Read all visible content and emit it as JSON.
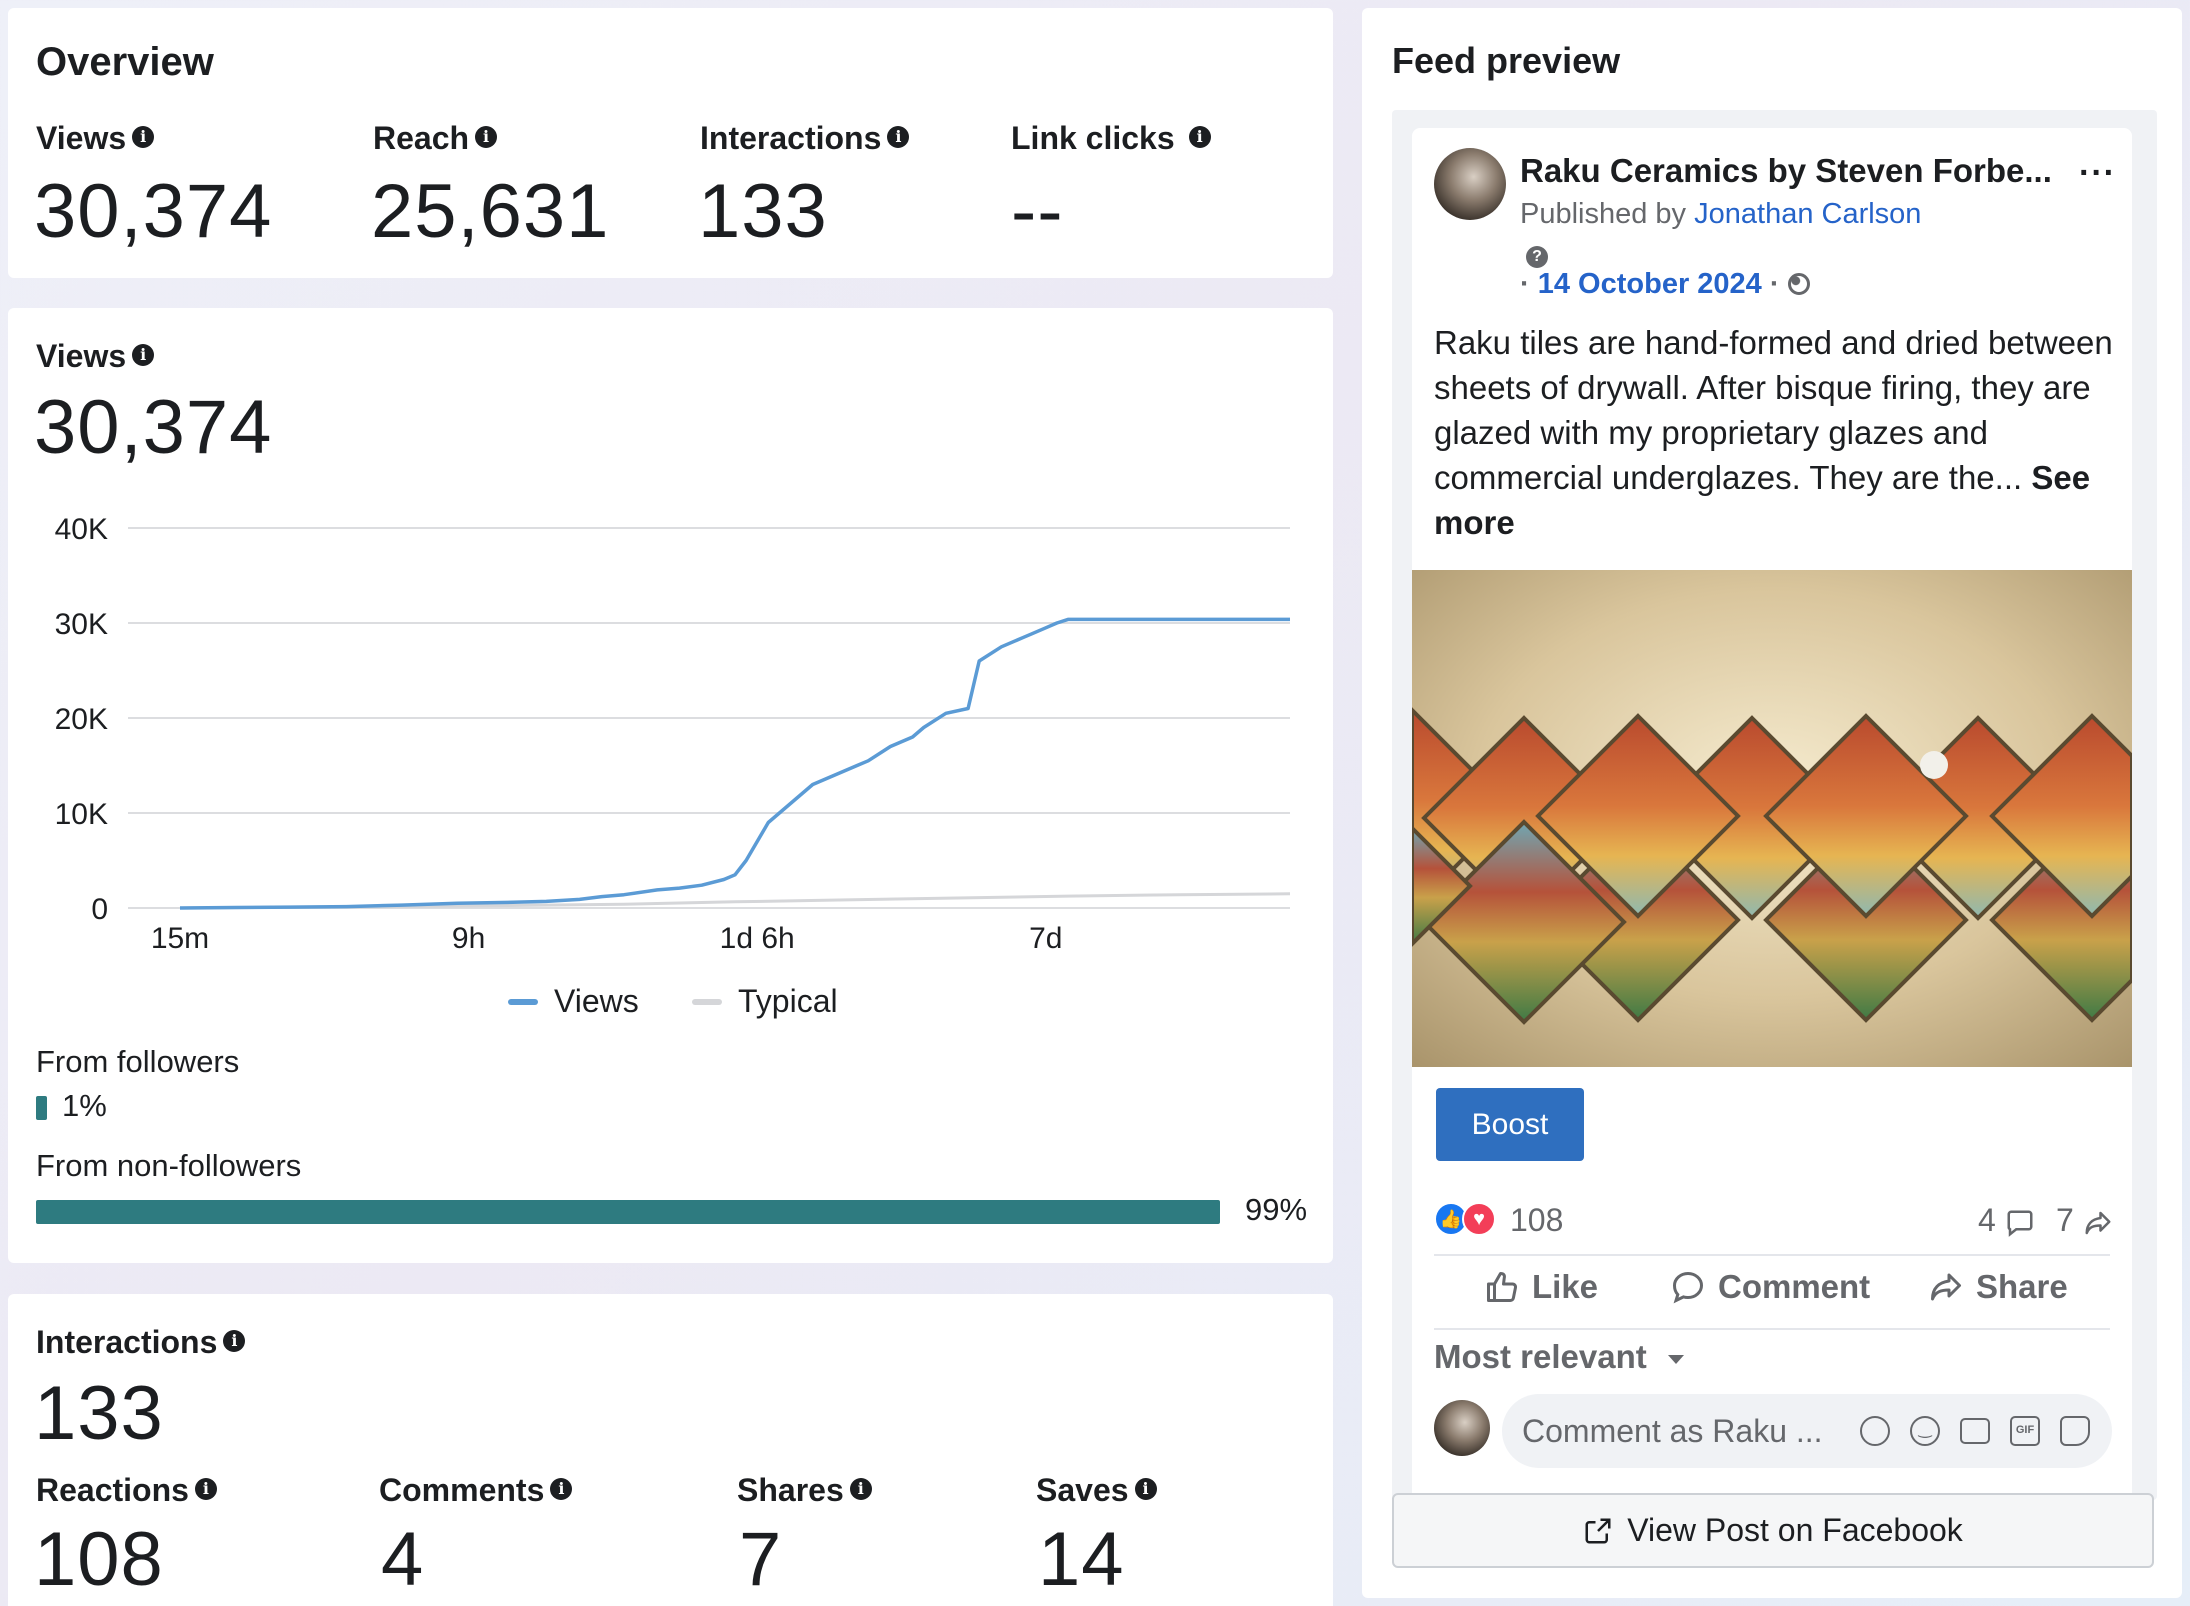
{
  "overview": {
    "title": "Overview",
    "metrics": [
      {
        "label": "Views",
        "value": "30,374"
      },
      {
        "label": "Reach",
        "value": "25,631"
      },
      {
        "label": "Interactions",
        "value": "133"
      },
      {
        "label": "Link clicks",
        "value": "--"
      }
    ]
  },
  "views_card": {
    "label": "Views",
    "value": "30,374",
    "legend": {
      "views": "Views",
      "typical": "Typical"
    },
    "from_followers": {
      "label": "From followers",
      "percent": 1,
      "percent_label": "1%"
    },
    "from_non_followers": {
      "label": "From non-followers",
      "percent": 99,
      "percent_label": "99%"
    }
  },
  "chart_data": {
    "type": "line",
    "title": "Views",
    "xlabel": "",
    "ylabel": "",
    "ylim": [
      0,
      40000
    ],
    "yticks": [
      0,
      10000,
      20000,
      30000,
      40000
    ],
    "ytick_labels": [
      "0",
      "10K",
      "20K",
      "30K",
      "40K"
    ],
    "xticks": [
      0,
      0.26,
      0.52,
      0.78
    ],
    "xtick_labels": [
      "15m",
      "9h",
      "1d 6h",
      "7d"
    ],
    "series": [
      {
        "name": "Views",
        "color": "#5b9bd5",
        "x": [
          0,
          0.05,
          0.1,
          0.15,
          0.2,
          0.25,
          0.3,
          0.33,
          0.36,
          0.38,
          0.4,
          0.43,
          0.45,
          0.47,
          0.49,
          0.5,
          0.51,
          0.52,
          0.53,
          0.55,
          0.57,
          0.59,
          0.61,
          0.62,
          0.64,
          0.66,
          0.67,
          0.69,
          0.71,
          0.72,
          0.74,
          0.76,
          0.78,
          0.79,
          0.8,
          0.82,
          0.85,
          0.9,
          0.95,
          1.0
        ],
        "values": [
          0,
          50,
          100,
          150,
          300,
          500,
          600,
          700,
          900,
          1200,
          1400,
          1900,
          2100,
          2400,
          3000,
          3500,
          5000,
          7000,
          9000,
          11000,
          13000,
          14000,
          15000,
          15500,
          17000,
          18000,
          19000,
          20500,
          21000,
          26000,
          27500,
          28500,
          29500,
          30000,
          30374,
          30374,
          30374,
          30374,
          30374,
          30374
        ]
      },
      {
        "name": "Typical",
        "color": "#d5d6d9",
        "x": [
          0,
          0.2,
          0.4,
          0.5,
          0.6,
          0.7,
          0.8,
          0.9,
          1.0
        ],
        "values": [
          0,
          150,
          400,
          650,
          850,
          1050,
          1250,
          1400,
          1500
        ]
      }
    ]
  },
  "interactions_card": {
    "label": "Interactions",
    "value": "133",
    "metrics": [
      {
        "label": "Reactions",
        "value": "108"
      },
      {
        "label": "Comments",
        "value": "4"
      },
      {
        "label": "Shares",
        "value": "7"
      },
      {
        "label": "Saves",
        "value": "14"
      }
    ]
  },
  "feed_preview": {
    "title": "Feed preview",
    "page_name": "Raku Ceramics by Steven Forbe...",
    "published_by_prefix": "Published by",
    "publisher": "Jonathan Carlson",
    "date_prefix": "·",
    "date": "14 October 2024",
    "date_suffix": "·",
    "post_text": "Raku tiles are hand-formed and dried between sheets of drywall. After bisque firing, they are glazed with my proprietary glazes and commercial underglazes. They are the...",
    "see_more": "See more",
    "boost_label": "Boost",
    "reactions_count": "108",
    "comments_count": "4",
    "shares_count": "7",
    "like_label": "Like",
    "comment_label": "Comment",
    "share_label": "Share",
    "sort_label": "Most relevant",
    "comment_placeholder": "Comment as Raku ...",
    "view_post_label": "View Post on Facebook"
  },
  "colors": {
    "accent_blue": "#2f6fbf",
    "bar_teal": "#2e7b80",
    "views_line": "#5b9bd5",
    "typical_line": "#d5d6d9"
  }
}
